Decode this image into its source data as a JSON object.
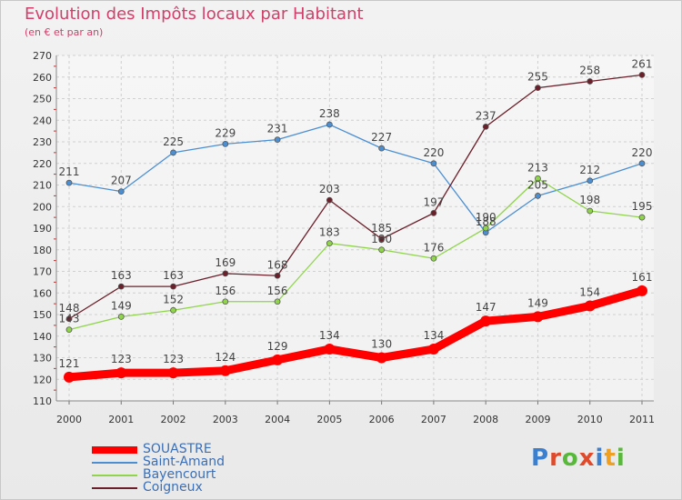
{
  "header": {
    "title": "Evolution des Impôts locaux par Habitant",
    "subtitle": "(en € et par an)"
  },
  "brand": {
    "logo": "Proxiti",
    "letter_colors": [
      "#3b7fd0",
      "#e04a2a",
      "#58b83a",
      "#e04a2a",
      "#3b7fd0",
      "#f0a020",
      "#58b83a"
    ]
  },
  "chart_data": {
    "type": "line",
    "title": "Evolution des Impôts locaux par Habitant",
    "subtitle": "(en € et par an)",
    "xlabel": "",
    "ylabel": "",
    "x": [
      "2000",
      "2001",
      "2002",
      "2003",
      "2004",
      "2005",
      "2006",
      "2007",
      "2008",
      "2009",
      "2010",
      "2011"
    ],
    "ylim": [
      110,
      270
    ],
    "yticks": [
      110,
      120,
      130,
      140,
      150,
      160,
      170,
      180,
      190,
      200,
      210,
      220,
      230,
      240,
      250,
      260,
      270
    ],
    "grid": true,
    "legend_position": "bottom-left",
    "series": [
      {
        "name": "SOUASTRE",
        "color": "#ff0000",
        "emphasis": true,
        "values": [
          121,
          123,
          123,
          124,
          129,
          134,
          130,
          134,
          147,
          149,
          154,
          161
        ]
      },
      {
        "name": "Saint-Amand",
        "color": "#4b8fd2",
        "values": [
          211,
          207,
          225,
          229,
          231,
          238,
          227,
          220,
          188,
          205,
          212,
          220
        ]
      },
      {
        "name": "Bayencourt",
        "color": "#8fd44a",
        "values": [
          143,
          149,
          152,
          156,
          156,
          183,
          180,
          176,
          190,
          213,
          198,
          195
        ]
      },
      {
        "name": "Coigneux",
        "color": "#6b1f2a",
        "values": [
          148,
          163,
          163,
          169,
          168,
          203,
          185,
          197,
          237,
          255,
          258,
          261
        ]
      }
    ]
  }
}
